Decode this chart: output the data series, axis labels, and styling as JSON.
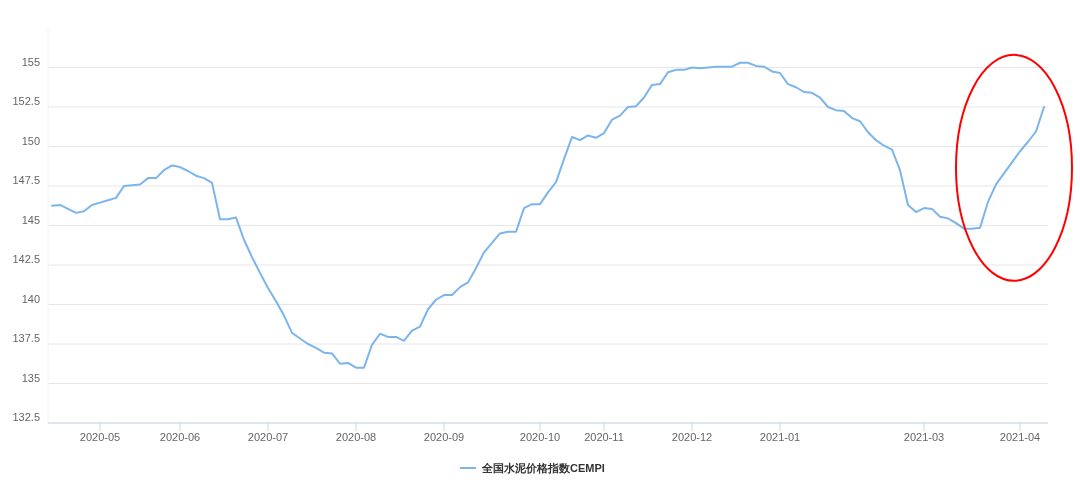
{
  "chart_data": {
    "type": "line",
    "categories": [
      null,
      null,
      null,
      null,
      null,
      null,
      "2020-05",
      null,
      null,
      null,
      null,
      null,
      null,
      null,
      null,
      null,
      "2020-06",
      null,
      null,
      null,
      null,
      null,
      null,
      null,
      null,
      null,
      null,
      "2020-07",
      null,
      null,
      null,
      null,
      null,
      null,
      null,
      null,
      null,
      null,
      "2020-08",
      null,
      null,
      null,
      null,
      null,
      null,
      null,
      null,
      null,
      null,
      "2020-09",
      null,
      null,
      null,
      null,
      null,
      null,
      null,
      null,
      null,
      null,
      null,
      "2020-10",
      null,
      null,
      null,
      null,
      null,
      null,
      null,
      "2020-11",
      null,
      null,
      null,
      null,
      null,
      null,
      null,
      null,
      null,
      null,
      "2020-12",
      null,
      null,
      null,
      null,
      null,
      null,
      null,
      null,
      null,
      null,
      "2021-01",
      null,
      null,
      null,
      null,
      null,
      null,
      null,
      null,
      null,
      null,
      null,
      null,
      null,
      null,
      null,
      null,
      null,
      "2021-03",
      null,
      null,
      null,
      null,
      null,
      null,
      null,
      null,
      null,
      null,
      null,
      "2021-04",
      null,
      null,
      null
    ],
    "series": [
      {
        "name": "全国水泥价格指数CEMPI",
        "color": "#7cb5ec",
        "values": [
          146.25,
          146.3,
          146.05,
          145.8,
          145.9,
          146.3,
          146.45,
          146.6,
          146.75,
          147.5,
          147.55,
          147.6,
          148.0,
          148.0,
          148.5,
          148.8,
          148.7,
          148.45,
          148.15,
          148.0,
          147.7,
          145.4,
          145.4,
          145.5,
          144.1,
          143.0,
          142.0,
          141.05,
          140.2,
          139.3,
          138.2,
          137.85,
          137.5,
          137.25,
          136.95,
          136.9,
          136.25,
          136.3,
          136.0,
          136.0,
          137.45,
          138.15,
          137.95,
          137.95,
          137.7,
          138.35,
          138.6,
          139.7,
          140.3,
          140.6,
          140.6,
          141.1,
          141.4,
          142.3,
          143.3,
          143.9,
          144.5,
          144.6,
          144.6,
          146.1,
          146.35,
          146.35,
          147.1,
          147.75,
          149.2,
          150.6,
          150.4,
          150.7,
          150.55,
          150.85,
          151.7,
          151.95,
          152.5,
          152.55,
          153.1,
          153.9,
          153.95,
          154.7,
          154.85,
          154.85,
          155.0,
          154.95,
          155.0,
          155.05,
          155.05,
          155.05,
          155.3,
          155.3,
          155.1,
          155.05,
          154.75,
          154.65,
          153.95,
          153.75,
          153.45,
          153.4,
          153.1,
          152.5,
          152.3,
          152.25,
          151.8,
          151.6,
          150.9,
          150.4,
          150.05,
          149.8,
          148.5,
          146.3,
          145.85,
          146.1,
          146.05,
          145.55,
          145.45,
          145.15,
          144.8,
          144.8,
          144.85,
          146.5,
          147.6,
          148.3,
          149.0,
          149.7,
          150.3,
          150.95,
          152.5
        ]
      }
    ],
    "ylim": [
      132.5,
      157.5
    ],
    "yticks": [
      132.5,
      135,
      137.5,
      140,
      142.5,
      145,
      147.5,
      150,
      152.5,
      155
    ],
    "grid": "y",
    "legend": "bottom",
    "marker": "none",
    "line_style": "solid"
  }
}
